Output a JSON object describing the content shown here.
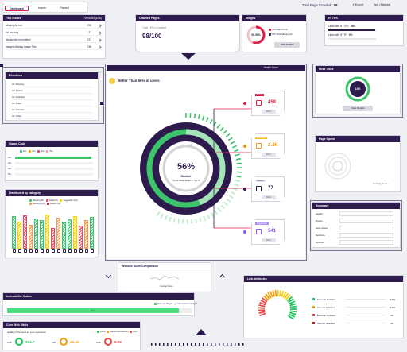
{
  "nav": {
    "tabs": [
      "Dashboard",
      "Issues",
      "Passed"
    ],
    "total_label": "Total Page Crawled :",
    "total_value": "98",
    "export_label": "Export",
    "user_label": "Yes",
    "project_label": "Abcheet"
  },
  "top_issues": {
    "title": "Top Issues",
    "view_all": "View All (678)",
    "items": [
      {
        "label": "Missing Alt text",
        "value": "296"
      },
      {
        "label": "Url too long",
        "value": "21"
      },
      {
        "label": "Javascript not minified",
        "value": "237"
      },
      {
        "label": "Images Missing Image Title",
        "value": "236"
      }
    ]
  },
  "crawled": {
    "title": "Crawled Pages",
    "sub": "Total URLs Crawled",
    "value": "98/100"
  },
  "images": {
    "title": "Images",
    "percent": "56.06%",
    "lines": [
      "254 total Alt text",
      "875 Total Missing Alt"
    ],
    "button": "View Details"
  },
  "https": {
    "title": "HTTPS",
    "line1_pre": "Links with HTTPS :",
    "line1_val": "98%",
    "line2_pre": "Links with HTTP :",
    "line2_val": "0%",
    "progress": 0.98
  },
  "directives": {
    "title": "Directives",
    "items": [
      "On Missing",
      "On Follow",
      "On Nofollow",
      "On Index",
      "On Noindex",
      "On Other"
    ]
  },
  "status_code": {
    "title": "Status Code",
    "legend": [
      "2xx",
      "3xx",
      "4xx",
      "5xx"
    ],
    "rows": [
      "2xx",
      "3xx",
      "4xx",
      "5xx"
    ],
    "bar2xx": 0.98
  },
  "category": {
    "title": "Distributed by category",
    "legend": [
      "Passed (25)",
      "Failed (6)",
      "Suggestion (17)",
      "Warning (28)",
      "Severe (32)"
    ],
    "bars": [
      0.85,
      0.7,
      0.88,
      0.62,
      0.8,
      0.75,
      0.9,
      0.55,
      0.82,
      0.68,
      0.78,
      0.86,
      0.6,
      0.74,
      0.84
    ]
  },
  "health": {
    "title": "Health Score",
    "better_than": "Better Than 56% of users",
    "score": "56%",
    "msg": "Munho!",
    "sub": "You're doing better in Top %"
  },
  "cards": [
    {
      "label": "Errors",
      "value": "458",
      "btn": "Fix It"
    },
    {
      "label": "Warnings",
      "value": "2.4K",
      "btn": "Fix It"
    },
    {
      "label": "Notices",
      "value": "77",
      "btn": "Fix It"
    },
    {
      "label": "Suggestion",
      "value": "541",
      "btn": "Fix It"
    }
  ],
  "meta": {
    "title": "Meta Titles",
    "value": "100",
    "button": "View Details"
  },
  "speed": {
    "title": "Page Speed",
    "coming": "Coming Soon..."
  },
  "summary": {
    "title": "Summary",
    "rows": [
      "Healthy",
      "Broken",
      "Have issues",
      "Redirects",
      "Blocked"
    ]
  },
  "audit": {
    "title": "Website Audit Comparison",
    "coming": "Coming Soon..."
  },
  "indexability": {
    "title": "Indexability Status",
    "legend": [
      "Indexed Pages",
      "Non-Indexed Pages"
    ],
    "progress": 0.93,
    "progress_label": "93%"
  },
  "cwv": {
    "title": "Core Web Vitals",
    "sub": "Quality of the users for your experience",
    "legend": [
      "Good",
      "Needs Improvement",
      "Poor"
    ],
    "metrics": [
      {
        "label": "LCP",
        "value": "964.7",
        "color": "#22c55e"
      },
      {
        "label": "FID",
        "value": "46.43",
        "color": "#f59e0b"
      },
      {
        "label": "CLS",
        "value": "0.02",
        "color": "#ef4444"
      }
    ]
  },
  "links": {
    "title": "Link attributes",
    "rows": [
      {
        "label": "External Dofollow",
        "value": "17%"
      },
      {
        "label": "Internal Dofollow",
        "value": "17%"
      },
      {
        "label": "External Nofollow",
        "value": "0%"
      },
      {
        "label": "Internal Nofollow",
        "value": "0%"
      }
    ]
  },
  "colors": {
    "primary": "#2d1b4e",
    "accent": "#e11d48",
    "green": "#3cc36b"
  }
}
